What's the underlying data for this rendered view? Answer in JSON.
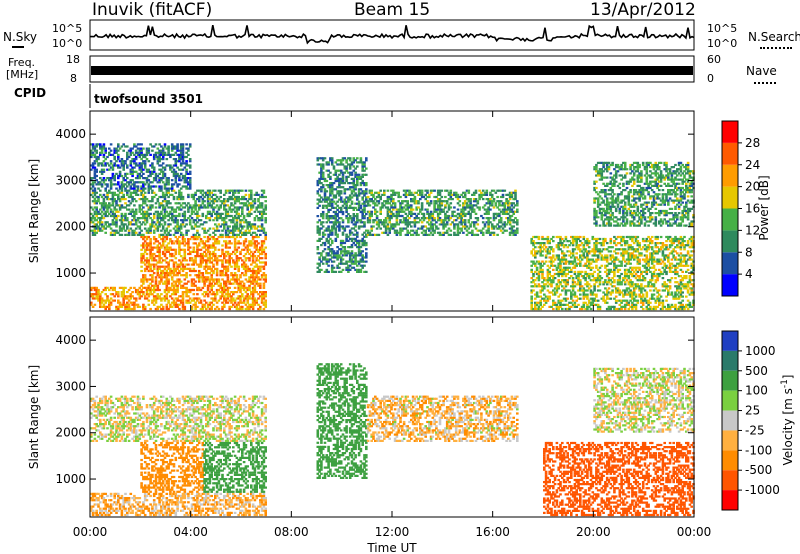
{
  "header": {
    "station": "Inuvik (fitACF)",
    "beam": "Beam 15",
    "date": "13/Apr/2012"
  },
  "nsky_panel": {
    "left_label": "N.Sky",
    "left_ticks": [
      "10^5",
      "10^0"
    ],
    "right_label": "N.Search",
    "right_ticks": [
      "10^5",
      "10^0"
    ]
  },
  "freq_panel": {
    "left_label_line1": "Freq.",
    "left_label_line2": "[MHz]",
    "left_ticks": [
      "18",
      "8"
    ],
    "right_label": "Nave",
    "right_ticks": [
      "60",
      "0"
    ]
  },
  "cpid_panel": {
    "label": "CPID",
    "text": "twofsound 3501"
  },
  "colors": {
    "power": [
      "#0000ff",
      "#1c4fa3",
      "#2f8a5e",
      "#46b046",
      "#e6c700",
      "#ff9c00",
      "#ff5a00",
      "#ff0000"
    ],
    "velocity": [
      "#1f3fc2",
      "#2a7a6a",
      "#3da040",
      "#7ad040",
      "#c8c8c8",
      "#ffb040",
      "#ff8c00",
      "#ff5500",
      "#ff0000"
    ],
    "ground_scatter": "#b4b4b4"
  },
  "chart_data": [
    {
      "type": "heatmap",
      "name_hint": "power panel",
      "xlabel": "",
      "ylabel": "Slant Range [km]",
      "xlim": [
        0,
        24
      ],
      "ylim": [
        180,
        4500
      ],
      "yticks": [
        "1000",
        "2000",
        "3000",
        "4000"
      ],
      "colorbar_label": "Power [dB]",
      "colorbar_ticks": [
        "4",
        "8",
        "12",
        "16",
        "20",
        "24",
        "28"
      ],
      "regions": [
        {
          "t0": 0.0,
          "t1": 7.0,
          "r0": 200,
          "r1": 700,
          "value": 24
        },
        {
          "t0": 2.0,
          "t1": 7.0,
          "r0": 700,
          "r1": 1800,
          "value": 25
        },
        {
          "t0": 0.0,
          "t1": 7.0,
          "r0": 1800,
          "r1": 2800,
          "value": 14
        },
        {
          "t0": 0.0,
          "t1": 4.0,
          "r0": 2800,
          "r1": 3800,
          "value": 10
        },
        {
          "t0": 9.0,
          "t1": 11.0,
          "r0": 1000,
          "r1": 3500,
          "value": 12
        },
        {
          "t0": 11.0,
          "t1": 17.0,
          "r0": 1800,
          "r1": 2800,
          "value": 14
        },
        {
          "t0": 17.5,
          "t1": 24.0,
          "r0": 200,
          "r1": 1800,
          "value": 18
        },
        {
          "t0": 20.0,
          "t1": 24.0,
          "r0": 2000,
          "r1": 3400,
          "value": 14
        }
      ]
    },
    {
      "type": "heatmap",
      "name_hint": "velocity panel",
      "xlabel": "Time UT",
      "ylabel": "Slant Range [km]",
      "xlim": [
        0,
        24
      ],
      "ylim": [
        180,
        4500
      ],
      "xticks": [
        "00:00",
        "04:00",
        "08:00",
        "12:00",
        "16:00",
        "20:00",
        "00:00"
      ],
      "yticks": [
        "1000",
        "2000",
        "3000",
        "4000"
      ],
      "colorbar_label": "Velocity [m s^-1]",
      "colorbar_ticks": [
        "1000",
        "500",
        "100",
        "25",
        "-25",
        "-100",
        "-500",
        "-1000"
      ],
      "regions": [
        {
          "t0": 0.0,
          "t1": 7.0,
          "r0": 200,
          "r1": 700,
          "value": -80
        },
        {
          "t0": 2.0,
          "t1": 4.5,
          "r0": 700,
          "r1": 1800,
          "value": -300
        },
        {
          "t0": 4.5,
          "t1": 7.0,
          "r0": 700,
          "r1": 1800,
          "value": 300
        },
        {
          "t0": 0.0,
          "t1": 7.0,
          "r0": 1800,
          "r1": 2800,
          "value": 0
        },
        {
          "t0": 9.0,
          "t1": 11.0,
          "r0": 1000,
          "r1": 3500,
          "value": 200
        },
        {
          "t0": 11.0,
          "t1": 17.0,
          "r0": 1800,
          "r1": 2800,
          "value": -60
        },
        {
          "t0": 18.0,
          "t1": 24.0,
          "r0": 200,
          "r1": 1800,
          "value": -700
        },
        {
          "t0": 20.0,
          "t1": 24.0,
          "r0": 2000,
          "r1": 3400,
          "value": 0
        }
      ]
    }
  ]
}
